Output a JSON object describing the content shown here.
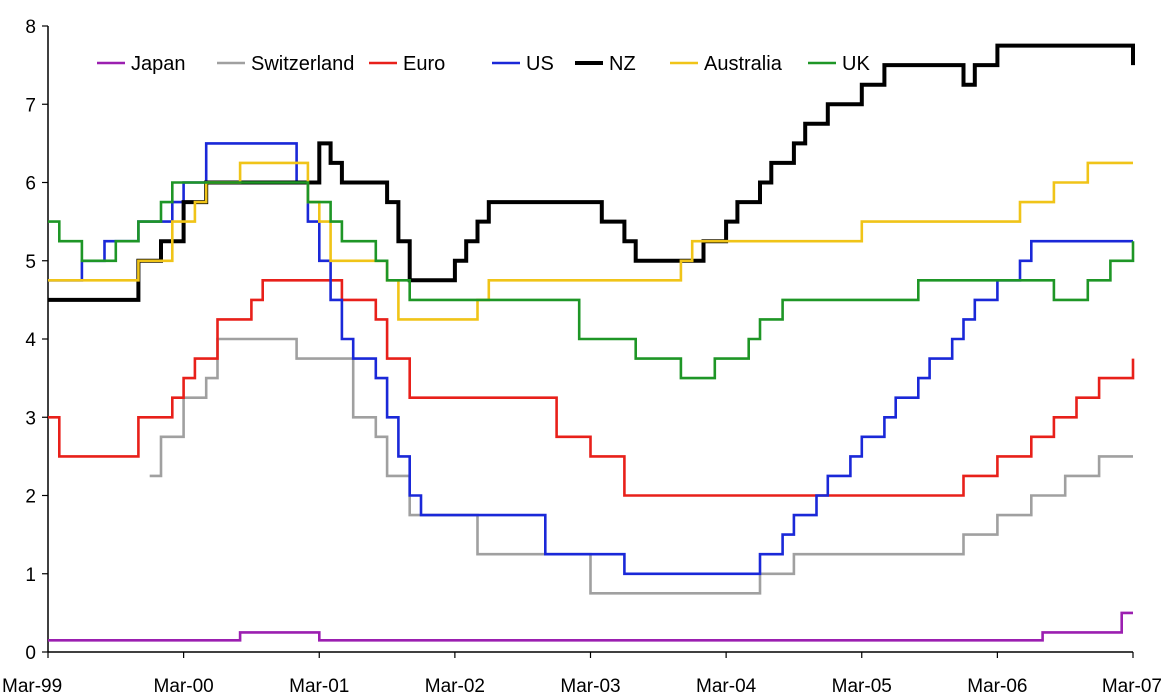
{
  "chart_data": {
    "type": "line",
    "title": "",
    "xlabel": "",
    "ylabel": "",
    "x_tick_labels": [
      "Mar-99",
      "Mar-00",
      "Mar-01",
      "Mar-02",
      "Mar-03",
      "Mar-04",
      "Mar-05",
      "Mar-06",
      "Mar-07"
    ],
    "y_tick_labels": [
      "0",
      "1",
      "2",
      "3",
      "4",
      "5",
      "6",
      "7",
      "8"
    ],
    "xlim": [
      "1999-03",
      "2007-03"
    ],
    "ylim": [
      0,
      8
    ],
    "grid": false,
    "legend_position": "top-left",
    "step": true,
    "series": [
      {
        "name": "Japan",
        "color": "#9b1fb0",
        "x": [
          "1999-03",
          "2000-08",
          "2001-03",
          "2006-07",
          "2007-02",
          "2007-03"
        ],
        "values": [
          0.15,
          0.25,
          0.15,
          0.25,
          0.5,
          0.5
        ]
      },
      {
        "name": "Switzerland",
        "color": "#a0a0a0",
        "x": [
          "1999-12",
          "2000-01",
          "2000-03",
          "2000-05",
          "2000-06",
          "2001-01",
          "2001-03",
          "2001-06",
          "2001-08",
          "2001-09",
          "2001-11",
          "2002-05",
          "2002-07",
          "2003-03",
          "2004-06",
          "2004-09",
          "2005-12",
          "2006-03",
          "2006-06",
          "2006-09",
          "2006-12",
          "2007-03"
        ],
        "values": [
          2.25,
          2.75,
          3.25,
          3.5,
          4.0,
          3.75,
          3.75,
          3.0,
          2.75,
          2.25,
          1.75,
          1.25,
          1.25,
          0.75,
          1.0,
          1.25,
          1.5,
          1.75,
          2.0,
          2.25,
          2.5,
          2.5
        ]
      },
      {
        "name": "Euro",
        "color": "#e8201a",
        "x": [
          "1999-03",
          "1999-04",
          "1999-11",
          "2000-02",
          "2000-03",
          "2000-04",
          "2000-06",
          "2000-09",
          "2000-10",
          "2001-05",
          "2001-08",
          "2001-09",
          "2001-11",
          "2002-12",
          "2003-03",
          "2003-06",
          "2005-12",
          "2006-03",
          "2006-06",
          "2006-08",
          "2006-10",
          "2006-12",
          "2007-03"
        ],
        "values": [
          3.0,
          2.5,
          3.0,
          3.25,
          3.5,
          3.75,
          4.25,
          4.5,
          4.75,
          4.5,
          4.25,
          3.75,
          3.25,
          2.75,
          2.5,
          2.0,
          2.25,
          2.5,
          2.75,
          3.0,
          3.25,
          3.5,
          3.75
        ]
      },
      {
        "name": "US",
        "color": "#1a28d8",
        "x": [
          "1999-03",
          "1999-06",
          "1999-08",
          "1999-11",
          "2000-02",
          "2000-03",
          "2000-05",
          "2001-01",
          "2001-02",
          "2001-03",
          "2001-04",
          "2001-05",
          "2001-06",
          "2001-08",
          "2001-09",
          "2001-10",
          "2001-11",
          "2001-12",
          "2002-11",
          "2003-06",
          "2004-06",
          "2004-08",
          "2004-09",
          "2004-11",
          "2004-12",
          "2005-02",
          "2005-03",
          "2005-05",
          "2005-06",
          "2005-08",
          "2005-09",
          "2005-11",
          "2005-12",
          "2006-01",
          "2006-03",
          "2006-05",
          "2006-06",
          "2007-03"
        ],
        "values": [
          4.75,
          5.0,
          5.25,
          5.5,
          5.75,
          6.0,
          6.5,
          6.0,
          5.5,
          5.0,
          4.5,
          4.0,
          3.75,
          3.5,
          3.0,
          2.5,
          2.0,
          1.75,
          1.25,
          1.0,
          1.25,
          1.5,
          1.75,
          2.0,
          2.25,
          2.5,
          2.75,
          3.0,
          3.25,
          3.5,
          3.75,
          4.0,
          4.25,
          4.5,
          4.75,
          5.0,
          5.25,
          5.25
        ]
      },
      {
        "name": "NZ",
        "color": "#000000",
        "x": [
          "1999-03",
          "1999-11",
          "2000-01",
          "2000-03",
          "2000-05",
          "2001-03",
          "2001-04",
          "2001-05",
          "2001-09",
          "2001-10",
          "2001-11",
          "2002-03",
          "2002-04",
          "2002-05",
          "2002-06",
          "2002-07",
          "2003-04",
          "2003-06",
          "2003-07",
          "2003-10",
          "2004-01",
          "2004-03",
          "2004-04",
          "2004-06",
          "2004-07",
          "2004-09",
          "2004-10",
          "2004-12",
          "2005-03",
          "2005-05",
          "2005-12",
          "2006-01",
          "2006-03",
          "2007-02",
          "2007-03"
        ],
        "values": [
          4.5,
          5.0,
          5.25,
          5.75,
          6.0,
          6.5,
          6.25,
          6.0,
          5.75,
          5.25,
          4.75,
          5.0,
          5.25,
          5.5,
          5.75,
          5.75,
          5.5,
          5.25,
          5.0,
          5.0,
          5.25,
          5.5,
          5.75,
          6.0,
          6.25,
          6.5,
          6.75,
          7.0,
          7.25,
          7.5,
          7.25,
          7.5,
          7.75,
          7.75,
          7.5
        ]
      },
      {
        "name": "Australia",
        "color": "#f0c418",
        "x": [
          "1999-03",
          "1999-11",
          "2000-02",
          "2000-04",
          "2000-05",
          "2000-08",
          "2001-02",
          "2001-03",
          "2001-04",
          "2001-09",
          "2001-10",
          "2002-05",
          "2002-06",
          "2003-11",
          "2003-12",
          "2005-03",
          "2006-05",
          "2006-08",
          "2006-11",
          "2007-03"
        ],
        "values": [
          4.75,
          5.0,
          5.5,
          5.75,
          6.0,
          6.25,
          5.75,
          5.5,
          5.0,
          4.75,
          4.25,
          4.5,
          4.75,
          5.0,
          5.25,
          5.5,
          5.75,
          6.0,
          6.25,
          6.25
        ]
      },
      {
        "name": "UK",
        "color": "#1e9626",
        "x": [
          "1999-03",
          "1999-04",
          "1999-06",
          "1999-09",
          "1999-11",
          "2000-01",
          "2000-02",
          "2001-02",
          "2001-04",
          "2001-05",
          "2001-08",
          "2001-09",
          "2001-11",
          "2003-02",
          "2003-07",
          "2003-11",
          "2004-02",
          "2004-05",
          "2004-06",
          "2004-08",
          "2005-08",
          "2006-08",
          "2006-11",
          "2007-01",
          "2007-03"
        ],
        "values": [
          5.5,
          5.25,
          5.0,
          5.25,
          5.5,
          5.75,
          6.0,
          5.75,
          5.5,
          5.25,
          5.0,
          4.75,
          4.5,
          4.0,
          3.75,
          3.5,
          3.75,
          4.0,
          4.25,
          4.5,
          4.75,
          4.5,
          4.75,
          5.0,
          5.25
        ]
      }
    ]
  }
}
